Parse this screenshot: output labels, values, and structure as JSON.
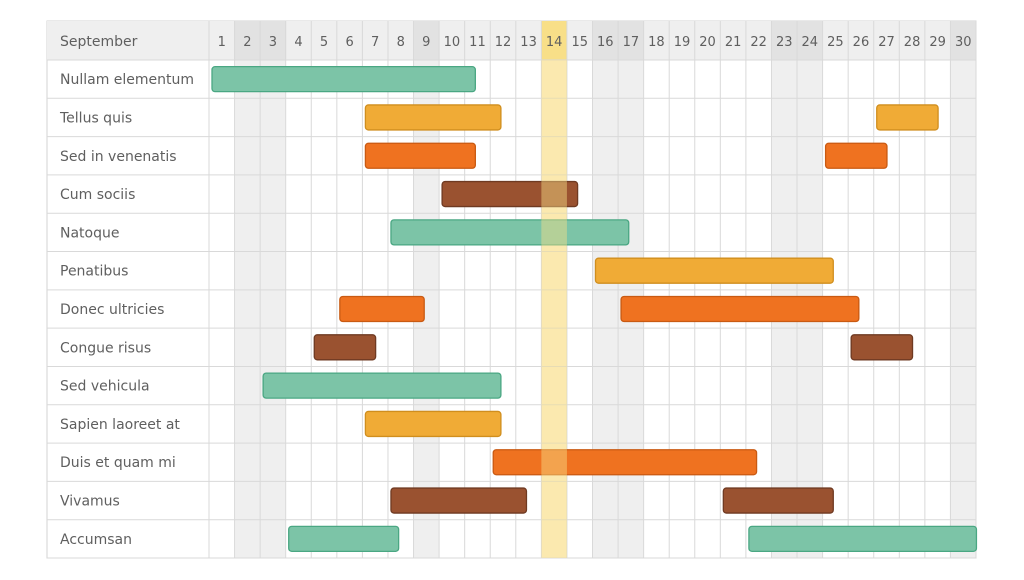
{
  "colors": {
    "teal": "#7cc4a7",
    "teal_border": "#4aa783",
    "yellow": "#f0ab36",
    "yellow_border": "#d08e1e",
    "orange": "#ef7220",
    "orange_border": "#c95a12",
    "brown": "#9a5230",
    "brown_border": "#6f3a22",
    "weekend_fill": "#efefef",
    "header_fill": "#efefef",
    "weekend_header_fill": "#e2e2e2",
    "today_fill": "#fdf1cf",
    "today_header_fill": "#f8df88",
    "grid_line": "#d9d9d9"
  },
  "chart_data": {
    "type": "gantt",
    "month_label": "September",
    "days": [
      "1",
      "2",
      "3",
      "4",
      "5",
      "6",
      "7",
      "8",
      "9",
      "10",
      "11",
      "12",
      "13",
      "14",
      "15",
      "16",
      "17",
      "18",
      "19",
      "20",
      "21",
      "22",
      "23",
      "24",
      "25",
      "26",
      "27",
      "28",
      "29",
      "30"
    ],
    "weekend_days": [
      2,
      3,
      9,
      16,
      17,
      23,
      24,
      30
    ],
    "today": 14,
    "rows": [
      {
        "label": "Nullam elementum",
        "bars": [
          {
            "start": 1,
            "end": 11.3,
            "color": "teal"
          }
        ]
      },
      {
        "label": "Tellus quis",
        "bars": [
          {
            "start": 7,
            "end": 12.3,
            "color": "yellow"
          },
          {
            "start": 27,
            "end": 29.4,
            "color": "yellow"
          }
        ]
      },
      {
        "label": "Sed in venenatis",
        "bars": [
          {
            "start": 7,
            "end": 11.3,
            "color": "orange"
          },
          {
            "start": 25,
            "end": 27.4,
            "color": "orange"
          }
        ]
      },
      {
        "label": "Cum sociis",
        "bars": [
          {
            "start": 10,
            "end": 15.3,
            "color": "brown"
          }
        ]
      },
      {
        "label": "Natoque",
        "bars": [
          {
            "start": 8,
            "end": 17.3,
            "color": "teal"
          }
        ]
      },
      {
        "label": "Penatibus",
        "bars": [
          {
            "start": 16,
            "end": 25.3,
            "color": "yellow"
          }
        ]
      },
      {
        "label": "Donec ultricies",
        "bars": [
          {
            "start": 6,
            "end": 9.3,
            "color": "orange"
          },
          {
            "start": 17,
            "end": 26.3,
            "color": "orange"
          }
        ]
      },
      {
        "label": "Congue risus",
        "bars": [
          {
            "start": 5,
            "end": 7.4,
            "color": "brown"
          },
          {
            "start": 26,
            "end": 28.4,
            "color": "brown"
          }
        ]
      },
      {
        "label": "Sed vehicula",
        "bars": [
          {
            "start": 3,
            "end": 12.3,
            "color": "teal"
          }
        ]
      },
      {
        "label": "Sapien laoreet at",
        "bars": [
          {
            "start": 7,
            "end": 12.3,
            "color": "yellow"
          }
        ]
      },
      {
        "label": "Duis et quam mi",
        "bars": [
          {
            "start": 12,
            "end": 22.3,
            "color": "orange"
          }
        ]
      },
      {
        "label": "Vivamus",
        "bars": [
          {
            "start": 8,
            "end": 13.3,
            "color": "brown"
          },
          {
            "start": 21,
            "end": 25.3,
            "color": "brown"
          }
        ]
      },
      {
        "label": "Accumsan",
        "bars": [
          {
            "start": 4,
            "end": 8.3,
            "color": "teal"
          },
          {
            "start": 22,
            "end": 30.9,
            "color": "teal"
          }
        ]
      }
    ]
  }
}
